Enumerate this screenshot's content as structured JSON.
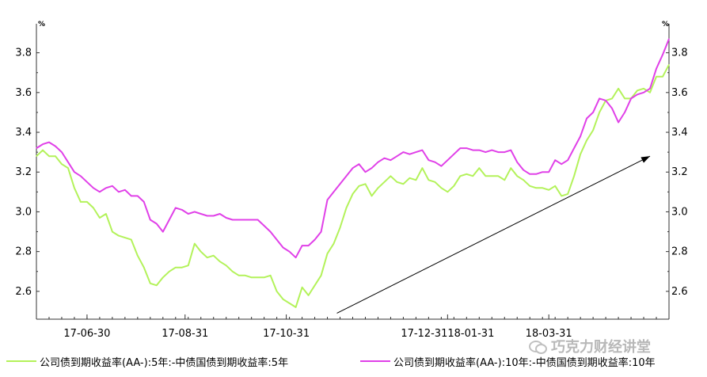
{
  "chart_data": {
    "type": "line",
    "title": "",
    "y_unit_left": "%",
    "y_unit_right": "%",
    "ylim": [
      2.46,
      3.93
    ],
    "yticks": [
      2.6,
      2.8,
      3.0,
      3.2,
      3.4,
      3.6,
      3.8
    ],
    "ytick_labels": [
      "2.6",
      "2.8",
      "3.0",
      "3.2",
      "3.4",
      "3.6",
      "3.8"
    ],
    "x_range_index": [
      0,
      200
    ],
    "x_tick_labels": [
      {
        "label": "17-06-30",
        "index": 16
      },
      {
        "label": "17-08-31",
        "index": 47
      },
      {
        "label": "17-10-31",
        "index": 79
      },
      {
        "label": "17-12-3118-01-31",
        "index": 130
      },
      {
        "label": "18-03-31",
        "index": 162
      }
    ],
    "grid": false,
    "legend_position": "bottom",
    "series": [
      {
        "name": "公司债到期收益率(AA-):5年:-中债国债到期收益率:5年",
        "color": "#b3f25a",
        "points": [
          [
            0,
            3.28
          ],
          [
            2,
            3.31
          ],
          [
            4,
            3.28
          ],
          [
            6,
            3.28
          ],
          [
            8,
            3.24
          ],
          [
            10,
            3.22
          ],
          [
            12,
            3.12
          ],
          [
            14,
            3.05
          ],
          [
            16,
            3.05
          ],
          [
            18,
            3.02
          ],
          [
            20,
            2.97
          ],
          [
            22,
            2.99
          ],
          [
            24,
            2.9
          ],
          [
            26,
            2.88
          ],
          [
            28,
            2.87
          ],
          [
            30,
            2.86
          ],
          [
            32,
            2.78
          ],
          [
            34,
            2.72
          ],
          [
            36,
            2.64
          ],
          [
            38,
            2.63
          ],
          [
            40,
            2.67
          ],
          [
            42,
            2.7
          ],
          [
            44,
            2.72
          ],
          [
            46,
            2.72
          ],
          [
            48,
            2.73
          ],
          [
            50,
            2.84
          ],
          [
            52,
            2.8
          ],
          [
            54,
            2.77
          ],
          [
            56,
            2.78
          ],
          [
            58,
            2.75
          ],
          [
            60,
            2.73
          ],
          [
            62,
            2.7
          ],
          [
            64,
            2.68
          ],
          [
            66,
            2.68
          ],
          [
            68,
            2.67
          ],
          [
            70,
            2.67
          ],
          [
            72,
            2.67
          ],
          [
            74,
            2.68
          ],
          [
            76,
            2.6
          ],
          [
            78,
            2.56
          ],
          [
            80,
            2.54
          ],
          [
            82,
            2.52
          ],
          [
            84,
            2.62
          ],
          [
            86,
            2.58
          ],
          [
            88,
            2.63
          ],
          [
            90,
            2.68
          ],
          [
            92,
            2.79
          ],
          [
            94,
            2.84
          ],
          [
            96,
            2.92
          ],
          [
            98,
            3.02
          ],
          [
            100,
            3.09
          ],
          [
            102,
            3.13
          ],
          [
            104,
            3.14
          ],
          [
            106,
            3.08
          ],
          [
            108,
            3.12
          ],
          [
            110,
            3.15
          ],
          [
            112,
            3.18
          ],
          [
            114,
            3.15
          ],
          [
            116,
            3.14
          ],
          [
            118,
            3.17
          ],
          [
            120,
            3.16
          ],
          [
            122,
            3.22
          ],
          [
            124,
            3.16
          ],
          [
            126,
            3.15
          ],
          [
            128,
            3.12
          ],
          [
            130,
            3.1
          ],
          [
            132,
            3.13
          ],
          [
            134,
            3.18
          ],
          [
            136,
            3.19
          ],
          [
            138,
            3.18
          ],
          [
            140,
            3.22
          ],
          [
            142,
            3.18
          ],
          [
            144,
            3.18
          ],
          [
            146,
            3.18
          ],
          [
            148,
            3.16
          ],
          [
            150,
            3.22
          ],
          [
            152,
            3.18
          ],
          [
            154,
            3.16
          ],
          [
            156,
            3.13
          ],
          [
            158,
            3.12
          ],
          [
            160,
            3.12
          ],
          [
            162,
            3.11
          ],
          [
            164,
            3.13
          ],
          [
            166,
            3.08
          ],
          [
            168,
            3.09
          ],
          [
            170,
            3.18
          ],
          [
            172,
            3.29
          ],
          [
            174,
            3.36
          ],
          [
            176,
            3.41
          ],
          [
            178,
            3.5
          ],
          [
            180,
            3.56
          ],
          [
            182,
            3.57
          ],
          [
            184,
            3.62
          ],
          [
            186,
            3.57
          ],
          [
            188,
            3.57
          ],
          [
            190,
            3.61
          ],
          [
            192,
            3.62
          ],
          [
            194,
            3.6
          ],
          [
            196,
            3.68
          ],
          [
            198,
            3.68
          ],
          [
            200,
            3.74
          ]
        ]
      },
      {
        "name": "公司债到期收益率(AA-):10年:-中债国债到期收益率:10年",
        "color": "#e040e8",
        "points": [
          [
            0,
            3.32
          ],
          [
            2,
            3.34
          ],
          [
            4,
            3.35
          ],
          [
            6,
            3.33
          ],
          [
            8,
            3.3
          ],
          [
            10,
            3.25
          ],
          [
            12,
            3.2
          ],
          [
            14,
            3.18
          ],
          [
            16,
            3.15
          ],
          [
            18,
            3.12
          ],
          [
            20,
            3.1
          ],
          [
            22,
            3.12
          ],
          [
            24,
            3.13
          ],
          [
            26,
            3.1
          ],
          [
            28,
            3.11
          ],
          [
            30,
            3.08
          ],
          [
            32,
            3.08
          ],
          [
            34,
            3.05
          ],
          [
            36,
            2.96
          ],
          [
            38,
            2.94
          ],
          [
            40,
            2.9
          ],
          [
            42,
            2.96
          ],
          [
            44,
            3.02
          ],
          [
            46,
            3.01
          ],
          [
            48,
            2.99
          ],
          [
            50,
            3.0
          ],
          [
            52,
            2.99
          ],
          [
            54,
            2.98
          ],
          [
            56,
            2.98
          ],
          [
            58,
            2.99
          ],
          [
            60,
            2.97
          ],
          [
            62,
            2.96
          ],
          [
            64,
            2.96
          ],
          [
            66,
            2.96
          ],
          [
            68,
            2.96
          ],
          [
            70,
            2.96
          ],
          [
            72,
            2.93
          ],
          [
            74,
            2.9
          ],
          [
            76,
            2.86
          ],
          [
            78,
            2.82
          ],
          [
            80,
            2.8
          ],
          [
            82,
            2.77
          ],
          [
            84,
            2.83
          ],
          [
            86,
            2.83
          ],
          [
            88,
            2.86
          ],
          [
            90,
            2.9
          ],
          [
            92,
            3.06
          ],
          [
            94,
            3.1
          ],
          [
            96,
            3.14
          ],
          [
            98,
            3.18
          ],
          [
            100,
            3.22
          ],
          [
            102,
            3.24
          ],
          [
            104,
            3.2
          ],
          [
            106,
            3.22
          ],
          [
            108,
            3.25
          ],
          [
            110,
            3.27
          ],
          [
            112,
            3.26
          ],
          [
            114,
            3.28
          ],
          [
            116,
            3.3
          ],
          [
            118,
            3.29
          ],
          [
            120,
            3.3
          ],
          [
            122,
            3.31
          ],
          [
            124,
            3.26
          ],
          [
            126,
            3.25
          ],
          [
            128,
            3.23
          ],
          [
            130,
            3.26
          ],
          [
            132,
            3.29
          ],
          [
            134,
            3.32
          ],
          [
            136,
            3.32
          ],
          [
            138,
            3.31
          ],
          [
            140,
            3.31
          ],
          [
            142,
            3.3
          ],
          [
            144,
            3.31
          ],
          [
            146,
            3.3
          ],
          [
            148,
            3.3
          ],
          [
            150,
            3.31
          ],
          [
            152,
            3.25
          ],
          [
            154,
            3.21
          ],
          [
            156,
            3.19
          ],
          [
            158,
            3.19
          ],
          [
            160,
            3.2
          ],
          [
            162,
            3.2
          ],
          [
            164,
            3.26
          ],
          [
            166,
            3.24
          ],
          [
            168,
            3.26
          ],
          [
            170,
            3.32
          ],
          [
            172,
            3.38
          ],
          [
            174,
            3.47
          ],
          [
            176,
            3.5
          ],
          [
            178,
            3.57
          ],
          [
            180,
            3.56
          ],
          [
            182,
            3.52
          ],
          [
            184,
            3.45
          ],
          [
            186,
            3.5
          ],
          [
            188,
            3.57
          ],
          [
            190,
            3.59
          ],
          [
            192,
            3.6
          ],
          [
            194,
            3.62
          ],
          [
            196,
            3.72
          ],
          [
            198,
            3.79
          ],
          [
            200,
            3.87
          ]
        ]
      }
    ],
    "annotation": {
      "type": "arrow",
      "from": [
        95,
        2.49
      ],
      "to": [
        194,
        3.28
      ],
      "color": "#000000"
    }
  },
  "watermark": "巧克力财经讲堂",
  "watermark_icon": "wechat-icon"
}
